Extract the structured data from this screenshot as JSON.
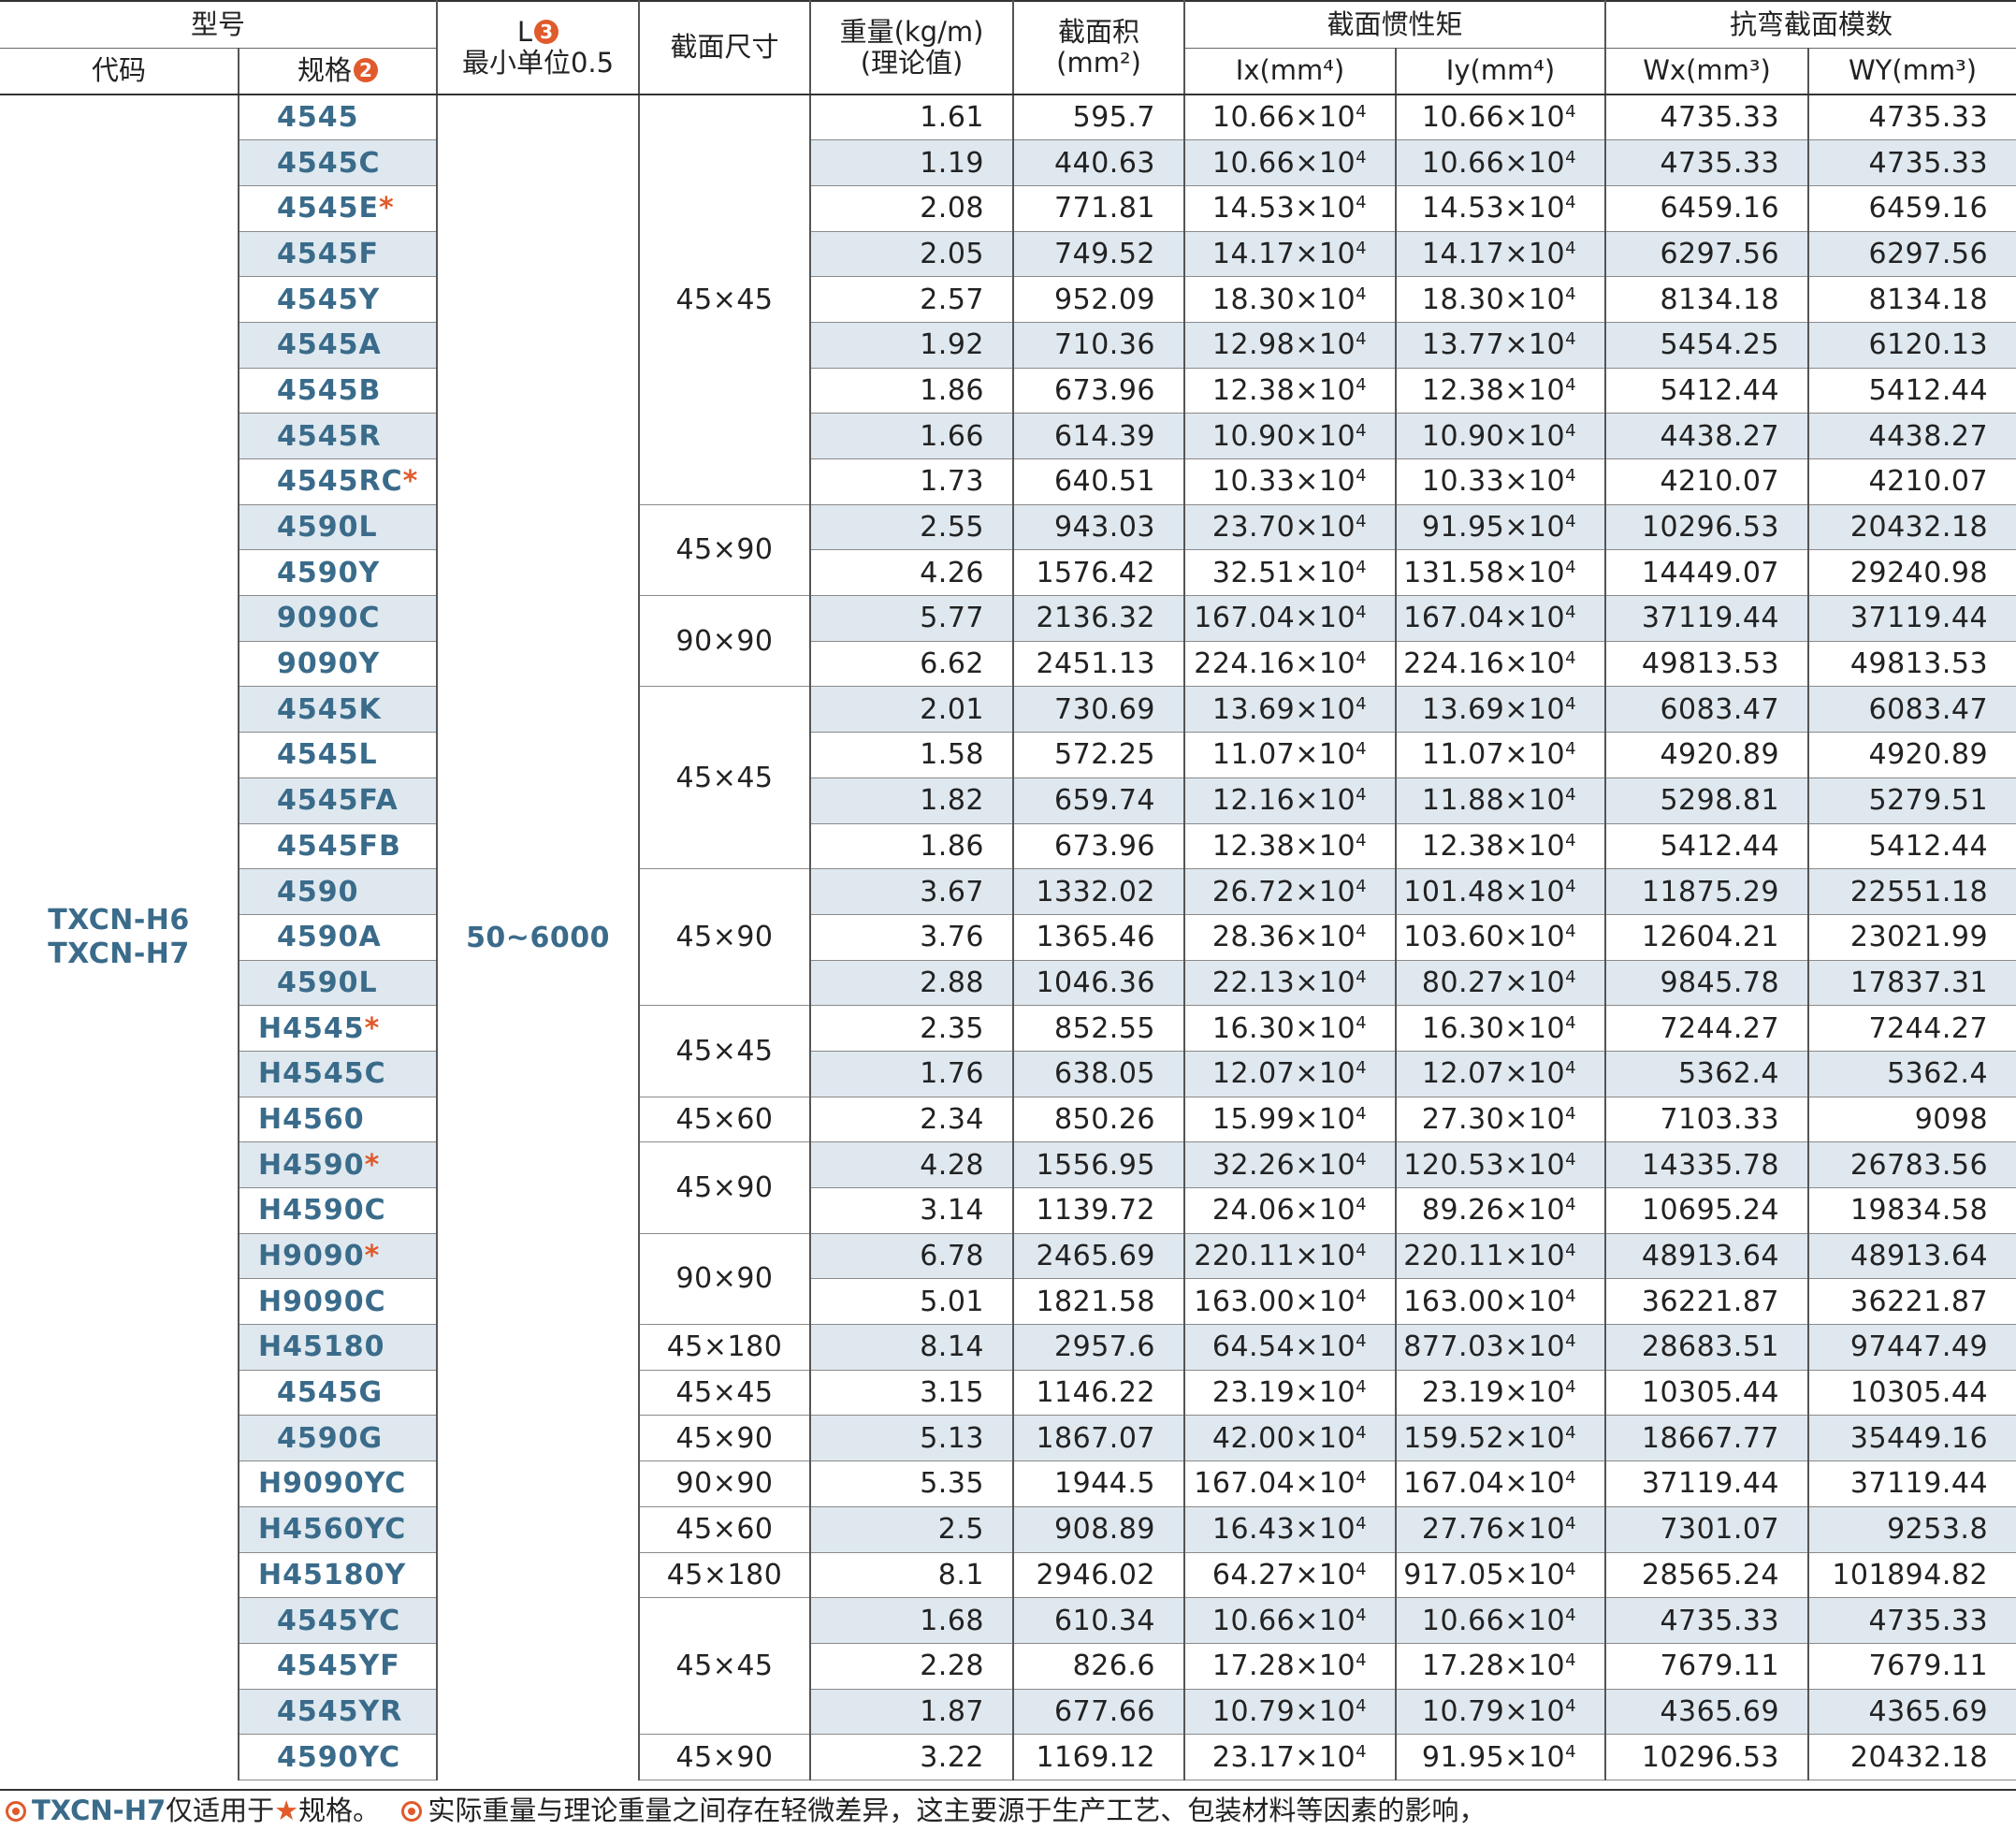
{
  "header": {
    "model": "型号",
    "code": "代码",
    "spec": "规格",
    "spec_badge": "2",
    "length": "L",
    "length_badge": "3",
    "length_sub": "最小单位0.5",
    "section_size": "截面尺寸",
    "weight": "重量(kg/m)",
    "weight_sub": "(理论值)",
    "area": "截面积",
    "area_unit": "(mm²)",
    "inertia": "截面惯性矩",
    "ix": "Ix(mm⁴)",
    "iy": "Iy(mm⁴)",
    "modulus": "抗弯截面模数",
    "wx": "Wx(mm³)",
    "wy": "WY(mm³)"
  },
  "code_values": [
    "TXCN-H6",
    "TXCN-H7"
  ],
  "length_value": "50~6000",
  "sizes": [
    {
      "label": "45×45",
      "rows": 9
    },
    {
      "label": "45×90",
      "rows": 2
    },
    {
      "label": "90×90",
      "rows": 2
    },
    {
      "label": "45×45",
      "rows": 4
    },
    {
      "label": "45×90",
      "rows": 3
    },
    {
      "label": "45×45",
      "rows": 2
    },
    {
      "label": "45×60",
      "rows": 1
    },
    {
      "label": "45×90",
      "rows": 2
    },
    {
      "label": "90×90",
      "rows": 2
    },
    {
      "label": "45×180",
      "rows": 1
    },
    {
      "label": "45×45",
      "rows": 1
    },
    {
      "label": "45×90",
      "rows": 1
    },
    {
      "label": "90×90",
      "rows": 1
    },
    {
      "label": "45×60",
      "rows": 1
    },
    {
      "label": "45×180",
      "rows": 1
    },
    {
      "label": "45×45",
      "rows": 3
    },
    {
      "label": "45×90",
      "rows": 1
    }
  ],
  "rows": [
    {
      "spec": "4545",
      "star": "",
      "weight": "1.61",
      "area": "595.7",
      "ix": "10.66",
      "iy": "10.66",
      "wx": "4735.33",
      "wy": "4735.33"
    },
    {
      "spec": "4545C",
      "star": "",
      "weight": "1.19",
      "area": "440.63",
      "ix": "10.66",
      "iy": "10.66",
      "wx": "4735.33",
      "wy": "4735.33"
    },
    {
      "spec": "4545E",
      "star": "*",
      "weight": "2.08",
      "area": "771.81",
      "ix": "14.53",
      "iy": "14.53",
      "wx": "6459.16",
      "wy": "6459.16"
    },
    {
      "spec": "4545F",
      "star": "",
      "weight": "2.05",
      "area": "749.52",
      "ix": "14.17",
      "iy": "14.17",
      "wx": "6297.56",
      "wy": "6297.56"
    },
    {
      "spec": "4545Y",
      "star": "",
      "weight": "2.57",
      "area": "952.09",
      "ix": "18.30",
      "iy": "18.30",
      "wx": "8134.18",
      "wy": "8134.18"
    },
    {
      "spec": "4545A",
      "star": "",
      "weight": "1.92",
      "area": "710.36",
      "ix": "12.98",
      "iy": "13.77",
      "wx": "5454.25",
      "wy": "6120.13"
    },
    {
      "spec": "4545B",
      "star": "",
      "weight": "1.86",
      "area": "673.96",
      "ix": "12.38",
      "iy": "12.38",
      "wx": "5412.44",
      "wy": "5412.44"
    },
    {
      "spec": "4545R",
      "star": "",
      "weight": "1.66",
      "area": "614.39",
      "ix": "10.90",
      "iy": "10.90",
      "wx": "4438.27",
      "wy": "4438.27"
    },
    {
      "spec": "4545RC",
      "star": "*",
      "weight": "1.73",
      "area": "640.51",
      "ix": "10.33",
      "iy": "10.33",
      "wx": "4210.07",
      "wy": "4210.07"
    },
    {
      "spec": "4590L",
      "star": "",
      "weight": "2.55",
      "area": "943.03",
      "ix": "23.70",
      "iy": "91.95",
      "wx": "10296.53",
      "wy": "20432.18"
    },
    {
      "spec": "4590Y",
      "star": "",
      "weight": "4.26",
      "area": "1576.42",
      "ix": "32.51",
      "iy": "131.58",
      "wx": "14449.07",
      "wy": "29240.98"
    },
    {
      "spec": "9090C",
      "star": "",
      "weight": "5.77",
      "area": "2136.32",
      "ix": "167.04",
      "iy": "167.04",
      "wx": "37119.44",
      "wy": "37119.44"
    },
    {
      "spec": "9090Y",
      "star": "",
      "weight": "6.62",
      "area": "2451.13",
      "ix": "224.16",
      "iy": "224.16",
      "wx": "49813.53",
      "wy": "49813.53"
    },
    {
      "spec": "4545K",
      "star": "",
      "weight": "2.01",
      "area": "730.69",
      "ix": "13.69",
      "iy": "13.69",
      "wx": "6083.47",
      "wy": "6083.47"
    },
    {
      "spec": "4545L",
      "star": "",
      "weight": "1.58",
      "area": "572.25",
      "ix": "11.07",
      "iy": "11.07",
      "wx": "4920.89",
      "wy": "4920.89"
    },
    {
      "spec": "4545FA",
      "star": "",
      "weight": "1.82",
      "area": "659.74",
      "ix": "12.16",
      "iy": "11.88",
      "wx": "5298.81",
      "wy": "5279.51"
    },
    {
      "spec": "4545FB",
      "star": "",
      "weight": "1.86",
      "area": "673.96",
      "ix": "12.38",
      "iy": "12.38",
      "wx": "5412.44",
      "wy": "5412.44"
    },
    {
      "spec": "4590",
      "star": "",
      "weight": "3.67",
      "area": "1332.02",
      "ix": "26.72",
      "iy": "101.48",
      "wx": "11875.29",
      "wy": "22551.18"
    },
    {
      "spec": "4590A",
      "star": "",
      "weight": "3.76",
      "area": "1365.46",
      "ix": "28.36",
      "iy": "103.60",
      "wx": "12604.21",
      "wy": "23021.99"
    },
    {
      "spec": "4590L",
      "star": "",
      "weight": "2.88",
      "area": "1046.36",
      "ix": "22.13",
      "iy": "80.27",
      "wx": "9845.78",
      "wy": "17837.31"
    },
    {
      "spec": "H4545",
      "star": "*",
      "weight": "2.35",
      "area": "852.55",
      "ix": "16.30",
      "iy": "16.30",
      "wx": "7244.27",
      "wy": "7244.27"
    },
    {
      "spec": "H4545C",
      "star": "",
      "weight": "1.76",
      "area": "638.05",
      "ix": "12.07",
      "iy": "12.07",
      "wx": "5362.4",
      "wy": "5362.4"
    },
    {
      "spec": "H4560",
      "star": "",
      "weight": "2.34",
      "area": "850.26",
      "ix": "15.99",
      "iy": "27.30",
      "wx": "7103.33",
      "wy": "9098"
    },
    {
      "spec": "H4590",
      "star": "*",
      "weight": "4.28",
      "area": "1556.95",
      "ix": "32.26",
      "iy": "120.53",
      "wx": "14335.78",
      "wy": "26783.56"
    },
    {
      "spec": "H4590C",
      "star": "",
      "weight": "3.14",
      "area": "1139.72",
      "ix": "24.06",
      "iy": "89.26",
      "wx": "10695.24",
      "wy": "19834.58"
    },
    {
      "spec": "H9090",
      "star": "*",
      "weight": "6.78",
      "area": "2465.69",
      "ix": "220.11",
      "iy": "220.11",
      "wx": "48913.64",
      "wy": "48913.64"
    },
    {
      "spec": "H9090C",
      "star": "",
      "weight": "5.01",
      "area": "1821.58",
      "ix": "163.00",
      "iy": "163.00",
      "wx": "36221.87",
      "wy": "36221.87"
    },
    {
      "spec": "H45180",
      "star": "",
      "weight": "8.14",
      "area": "2957.6",
      "ix": "64.54",
      "iy": "877.03",
      "wx": "28683.51",
      "wy": "97447.49"
    },
    {
      "spec": "4545G",
      "star": "",
      "weight": "3.15",
      "area": "1146.22",
      "ix": "23.19",
      "iy": "23.19",
      "wx": "10305.44",
      "wy": "10305.44"
    },
    {
      "spec": "4590G",
      "star": "",
      "weight": "5.13",
      "area": "1867.07",
      "ix": "42.00",
      "iy": "159.52",
      "wx": "18667.77",
      "wy": "35449.16"
    },
    {
      "spec": "H9090YC",
      "star": "",
      "weight": "5.35",
      "area": "1944.5",
      "ix": "167.04",
      "iy": "167.04",
      "wx": "37119.44",
      "wy": "37119.44"
    },
    {
      "spec": "H4560YC",
      "star": "",
      "weight": "2.5",
      "area": "908.89",
      "ix": "16.43",
      "iy": "27.76",
      "wx": "7301.07",
      "wy": "9253.8"
    },
    {
      "spec": "H45180Y",
      "star": "",
      "weight": "8.1",
      "area": "2946.02",
      "ix": "64.27",
      "iy": "917.05",
      "wx": "28565.24",
      "wy": "101894.82"
    },
    {
      "spec": "4545YC",
      "star": "",
      "weight": "1.68",
      "area": "610.34",
      "ix": "10.66",
      "iy": "10.66",
      "wx": "4735.33",
      "wy": "4735.33"
    },
    {
      "spec": "4545YF",
      "star": "",
      "weight": "2.28",
      "area": "826.6",
      "ix": "17.28",
      "iy": "17.28",
      "wx": "7679.11",
      "wy": "7679.11"
    },
    {
      "spec": "4545YR",
      "star": "",
      "weight": "1.87",
      "area": "677.66",
      "ix": "10.79",
      "iy": "10.79",
      "wx": "4365.69",
      "wy": "4365.69"
    },
    {
      "spec": "4590YC",
      "star": "",
      "weight": "3.22",
      "area": "1169.12",
      "ix": "23.17",
      "iy": "91.95",
      "wx": "10296.53",
      "wy": "20432.18"
    }
  ],
  "exponent_suffix": "×10",
  "exponent": "4",
  "footer": {
    "note1_code": "TXCN-H7",
    "note1_text": "仅适用于",
    "note1_star": "★",
    "note1_end": "规格。",
    "note2_text": "实际重量与理论重量之间存在轻微差异，这主要源于生产工艺、包装材料等因素的影响，"
  },
  "colors": {
    "accent_blue": "#3a6b8a",
    "accent_orange": "#e05a2b",
    "stripe": "#dfe8ef"
  }
}
